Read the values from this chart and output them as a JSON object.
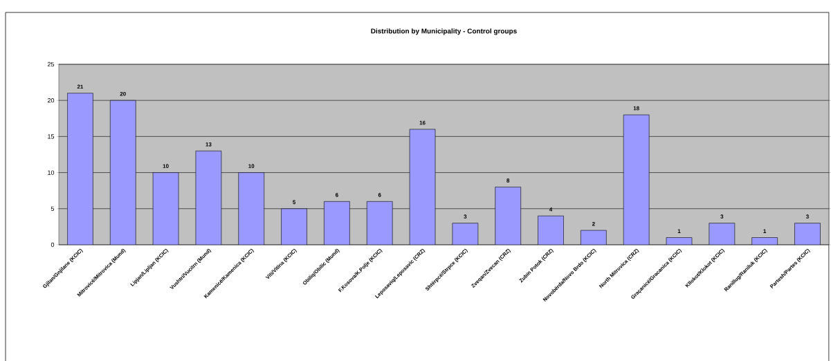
{
  "chart_data": {
    "type": "bar",
    "title": "Distribution by Municipality - Control groups",
    "categories": [
      "Gjilan/Gnjilane (KCIC)",
      "Mitrovicë/Mitrovica (Mund)",
      "Lipjan/Lipljan (KCIC)",
      "Vushtri/Vucitrn (Mund)",
      "Kamenicë/Kamenica (KCIC)",
      "Viti/Vitina (KCIC)",
      "Obiliq/Obilic (Mund)",
      "F.Kosova/K.Polje (KCIC)",
      "Leposaviq/Leposavic (CRZ)",
      "Shtërpcë/Strpce (KCIC)",
      "Zveqan/Zvecan (CRZ)",
      "Zubin Potok (CRZ)",
      "Novobërda/Novo Brdo (KCIC)",
      "North Mitrovica (CRZ)",
      "Graçanicë/Gracanica (KCIC)",
      "Kllokot/Klokot (KCIC)",
      "Ranillug/Raniluk (KCIC)",
      "Partesh/Partes (KCIC)"
    ],
    "values": [
      21,
      20,
      10,
      13,
      10,
      5,
      6,
      6,
      16,
      3,
      8,
      4,
      2,
      18,
      1,
      3,
      1,
      3
    ],
    "color": "#9999ff",
    "ylim": [
      0,
      25
    ],
    "yticks": [
      0,
      5,
      10,
      15,
      20,
      25
    ],
    "grid": "y",
    "data_labels": true
  }
}
